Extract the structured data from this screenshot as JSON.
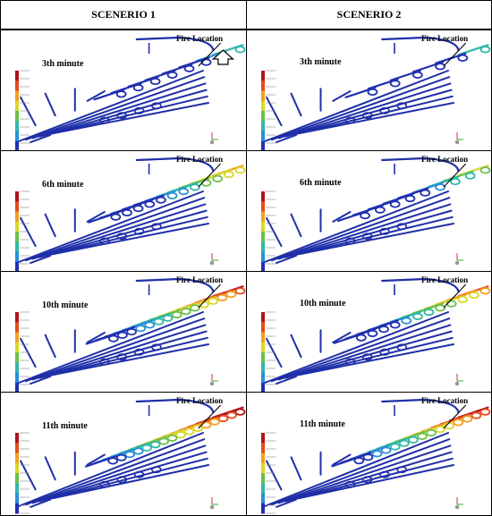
{
  "headers": {
    "left": "SCENERIO 1",
    "right": "SCENERIO 2"
  },
  "fire_label": "Fire Location",
  "rows": [
    {
      "minute": "3th minute",
      "intensity_s1": 0.25,
      "intensity_s2": 0.15
    },
    {
      "minute": "6th minute",
      "intensity_s1": 0.55,
      "intensity_s2": 0.35
    },
    {
      "minute": "10th minute",
      "intensity_s1": 0.75,
      "intensity_s2": 0.6
    },
    {
      "minute": "11th minute",
      "intensity_s1": 0.85,
      "intensity_s2": 0.75
    }
  ],
  "colors": {
    "pipe": "#1f2fa8",
    "hot": "#b0141a",
    "warm": "#e87a1c",
    "mid": "#3cb36b",
    "cool": "#22a9d4",
    "border": "#000000"
  },
  "legend_gradient": [
    "#b0141a",
    "#e84a1c",
    "#f0a020",
    "#d8d82a",
    "#6cc04a",
    "#2fb8a8",
    "#2a8fd8",
    "#2030b0"
  ]
}
